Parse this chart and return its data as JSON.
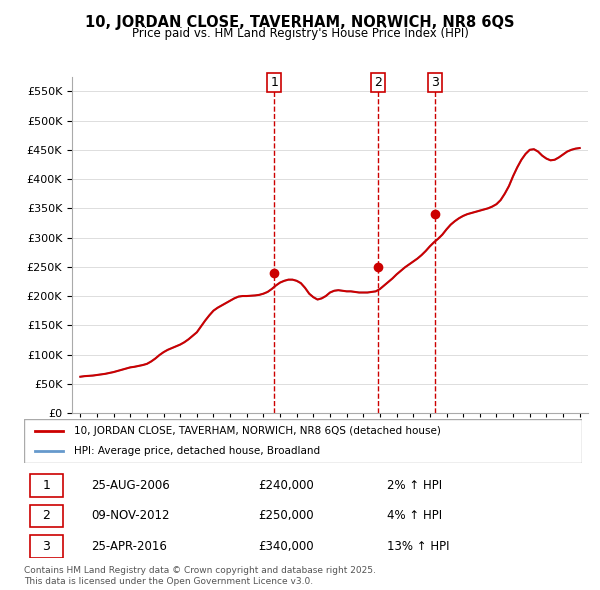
{
  "title": "10, JORDAN CLOSE, TAVERHAM, NORWICH, NR8 6QS",
  "subtitle": "Price paid vs. HM Land Registry's House Price Index (HPI)",
  "ylabel": "",
  "ylim": [
    0,
    575000
  ],
  "yticks": [
    0,
    50000,
    100000,
    150000,
    200000,
    250000,
    300000,
    350000,
    400000,
    450000,
    500000,
    550000
  ],
  "xlim_start": 1994.5,
  "xlim_end": 2025.5,
  "sale_color": "#cc0000",
  "hpi_color": "#6699cc",
  "sale_dates": [
    2006.65,
    2012.86,
    2016.32
  ],
  "sale_prices": [
    240000,
    250000,
    340000
  ],
  "sale_labels": [
    "1",
    "2",
    "3"
  ],
  "transactions": [
    {
      "label": "1",
      "date": "25-AUG-2006",
      "price": "£240,000",
      "change": "2% ↑ HPI"
    },
    {
      "label": "2",
      "date": "09-NOV-2012",
      "price": "£250,000",
      "change": "4% ↑ HPI"
    },
    {
      "label": "3",
      "date": "25-APR-2016",
      "price": "£340,000",
      "change": "13% ↑ HPI"
    }
  ],
  "legend_line1": "10, JORDAN CLOSE, TAVERHAM, NORWICH, NR8 6QS (detached house)",
  "legend_line2": "HPI: Average price, detached house, Broadland",
  "footer": "Contains HM Land Registry data © Crown copyright and database right 2025.\nThis data is licensed under the Open Government Licence v3.0.",
  "hpi_x": [
    1995.0,
    1995.25,
    1995.5,
    1995.75,
    1996.0,
    1996.25,
    1996.5,
    1996.75,
    1997.0,
    1997.25,
    1997.5,
    1997.75,
    1998.0,
    1998.25,
    1998.5,
    1998.75,
    1999.0,
    1999.25,
    1999.5,
    1999.75,
    2000.0,
    2000.25,
    2000.5,
    2000.75,
    2001.0,
    2001.25,
    2001.5,
    2001.75,
    2002.0,
    2002.25,
    2002.5,
    2002.75,
    2003.0,
    2003.25,
    2003.5,
    2003.75,
    2004.0,
    2004.25,
    2004.5,
    2004.75,
    2005.0,
    2005.25,
    2005.5,
    2005.75,
    2006.0,
    2006.25,
    2006.5,
    2006.75,
    2007.0,
    2007.25,
    2007.5,
    2007.75,
    2008.0,
    2008.25,
    2008.5,
    2008.75,
    2009.0,
    2009.25,
    2009.5,
    2009.75,
    2010.0,
    2010.25,
    2010.5,
    2010.75,
    2011.0,
    2011.25,
    2011.5,
    2011.75,
    2012.0,
    2012.25,
    2012.5,
    2012.75,
    2013.0,
    2013.25,
    2013.5,
    2013.75,
    2014.0,
    2014.25,
    2014.5,
    2014.75,
    2015.0,
    2015.25,
    2015.5,
    2015.75,
    2016.0,
    2016.25,
    2016.5,
    2016.75,
    2017.0,
    2017.25,
    2017.5,
    2017.75,
    2018.0,
    2018.25,
    2018.5,
    2018.75,
    2019.0,
    2019.25,
    2019.5,
    2019.75,
    2020.0,
    2020.25,
    2020.5,
    2020.75,
    2021.0,
    2021.25,
    2021.5,
    2021.75,
    2022.0,
    2022.25,
    2022.5,
    2022.75,
    2023.0,
    2023.25,
    2023.5,
    2023.75,
    2024.0,
    2024.25,
    2024.5,
    2024.75,
    2025.0
  ],
  "hpi_y": [
    62000,
    63000,
    63500,
    64000,
    65000,
    66000,
    67000,
    68500,
    70000,
    72000,
    74000,
    76000,
    78000,
    79000,
    80500,
    82000,
    84000,
    88000,
    93000,
    99000,
    104000,
    108000,
    111000,
    114000,
    117000,
    121000,
    126000,
    132000,
    138000,
    148000,
    158000,
    167000,
    175000,
    180000,
    184000,
    188000,
    192000,
    196000,
    199000,
    200000,
    200000,
    200500,
    201000,
    202000,
    204000,
    207000,
    212000,
    218000,
    223000,
    226000,
    228000,
    228000,
    226000,
    222000,
    214000,
    204000,
    198000,
    194000,
    196000,
    200000,
    206000,
    209000,
    210000,
    209000,
    208000,
    208000,
    207000,
    206000,
    206000,
    206000,
    207000,
    208000,
    212000,
    218000,
    224000,
    230000,
    237000,
    243000,
    249000,
    254000,
    259000,
    264000,
    270000,
    277000,
    285000,
    292000,
    298000,
    305000,
    314000,
    322000,
    328000,
    333000,
    337000,
    340000,
    342000,
    344000,
    346000,
    348000,
    350000,
    353000,
    357000,
    364000,
    375000,
    388000,
    405000,
    420000,
    433000,
    443000,
    450000,
    451000,
    447000,
    440000,
    435000,
    432000,
    433000,
    437000,
    442000,
    447000,
    450000,
    452000,
    453000
  ],
  "sale_line_x": [
    2006.65,
    2012.86,
    2016.32
  ]
}
